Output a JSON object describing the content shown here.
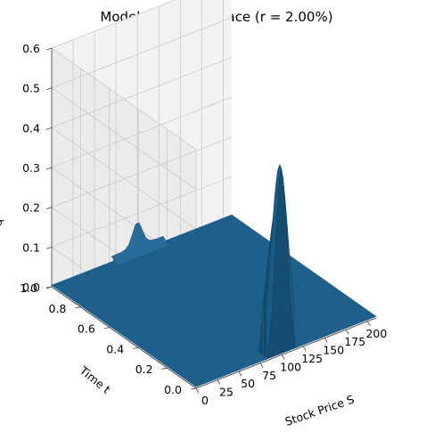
{
  "chart_data": {
    "type": "surface",
    "title": "Model Density Surface  (r = 2.00%)",
    "xlabel": "Stock Price S",
    "ylabel": "Time t",
    "zlabel": "q",
    "xlim": [
      0,
      210
    ],
    "ylim": [
      0,
      1.0
    ],
    "zlim": [
      0,
      0.6
    ],
    "x_ticks": [
      "0",
      "25",
      "50",
      "75",
      "100",
      "125",
      "150",
      "175",
      "200"
    ],
    "y_ticks": [
      "0.0",
      "0.2",
      "0.4",
      "0.6",
      "0.8",
      "1.0"
    ],
    "z_ticks": [
      "0.0",
      "0.1",
      "0.2",
      "0.3",
      "0.4",
      "0.5",
      "0.6"
    ],
    "surface_color": "#1f5f8b",
    "features": [
      {
        "description_value": "spike near S=100 at t close to 0",
        "S": 100,
        "t": 0.01,
        "q": 0.48
      },
      {
        "description_value": "ridge near S=100 at t=1",
        "S": 100,
        "t": 1.0,
        "q": 0.06
      }
    ]
  }
}
